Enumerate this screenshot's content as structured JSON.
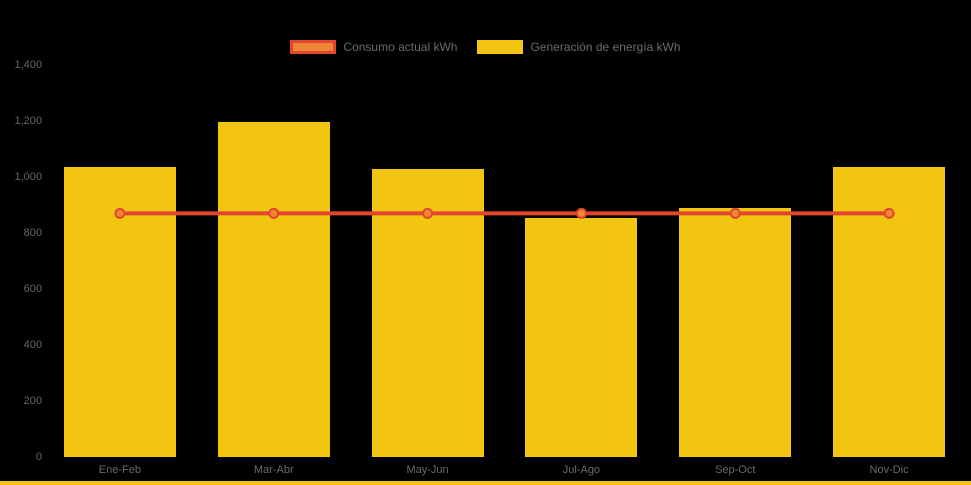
{
  "colors": {
    "background": "#000000",
    "bar_fill": "#F2C511",
    "line_stroke": "#E2462F",
    "point_fill": "#EE8735",
    "point_border": "#E2462F",
    "axis_text": "#636363",
    "legend_text": "#6B6B6B",
    "bottom_strip": "#F2C511"
  },
  "legend": [
    {
      "label": "Consumo actual kWh",
      "fill": "#EE8735",
      "border": "#E2462F"
    },
    {
      "label": "Generación de energía kWh",
      "fill": "#F2C511",
      "border": "#F2C511"
    }
  ],
  "chart_data": {
    "type": "bar",
    "subtype": "bar-and-line-combo",
    "categories": [
      "Ene-Feb",
      "Mar-Abr",
      "May-Jun",
      "Jul-Ago",
      "Sep-Oct",
      "Nov-Dic"
    ],
    "series": [
      {
        "name": "Consumo actual kWh",
        "type": "line",
        "values": [
          870,
          870,
          870,
          870,
          870,
          870
        ],
        "color": "#E2462F",
        "point_fill": "#EE8735"
      },
      {
        "name": "Generación de energía kWh",
        "type": "bar",
        "values": [
          1035,
          1195,
          1030,
          855,
          890,
          1035
        ],
        "color": "#F2C511"
      }
    ],
    "title": "",
    "xlabel": "",
    "ylabel": "",
    "ylim": [
      0,
      1400
    ],
    "ytick_interval": 200,
    "ytick_labels": [
      "0",
      "200",
      "400",
      "600",
      "800",
      "1,000",
      "1,200",
      "1,400"
    ],
    "grid": false,
    "legend_position": "top"
  }
}
